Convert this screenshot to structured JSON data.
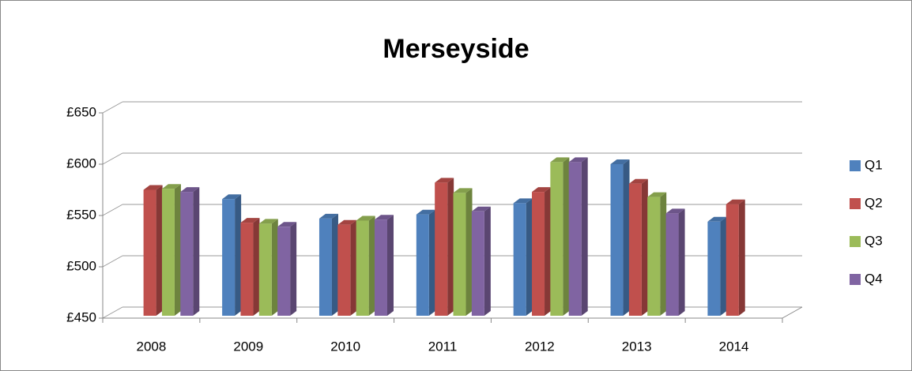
{
  "chart_data": {
    "type": "bar3d",
    "title": "Merseyside",
    "categories": [
      "2008",
      "2009",
      "2010",
      "2011",
      "2012",
      "2013",
      "2014"
    ],
    "series": [
      {
        "name": "Q1",
        "color": "#4f81bd",
        "values": [
          null,
          566,
          547,
          551,
          562,
          600,
          544
        ]
      },
      {
        "name": "Q2",
        "color": "#c0504d",
        "values": [
          575,
          543,
          541,
          582,
          573,
          581,
          561
        ]
      },
      {
        "name": "Q3",
        "color": "#9bbb59",
        "values": [
          576,
          542,
          545,
          572,
          602,
          568,
          null
        ]
      },
      {
        "name": "Q4",
        "color": "#8064a2",
        "values": [
          573,
          539,
          546,
          554,
          602,
          552,
          null
        ]
      }
    ],
    "ylim": [
      450,
      650
    ],
    "yticks": [
      {
        "value": 450,
        "label": "£450"
      },
      {
        "value": 500,
        "label": "£500"
      },
      {
        "value": 550,
        "label": "£550"
      },
      {
        "value": 600,
        "label": "£600"
      },
      {
        "value": 650,
        "label": "£650"
      }
    ],
    "grid": true,
    "legend": "right"
  }
}
